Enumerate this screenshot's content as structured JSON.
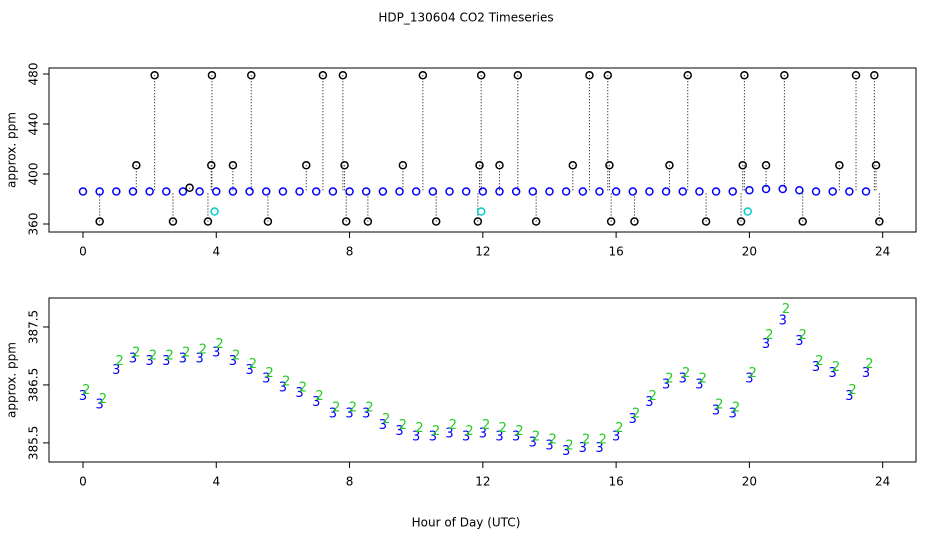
{
  "chart_data": [
    {
      "type": "scatter",
      "title": "HDP_130604  CO2 Timeseries",
      "y_label": "approx. ppm",
      "xlim": [
        -1.02,
        25
      ],
      "xticks": [
        0,
        4,
        8,
        12,
        16,
        20,
        24
      ],
      "ylim": [
        353.6,
        484.8
      ],
      "yticks": [
        360,
        400,
        440,
        480
      ],
      "droplines": true,
      "series": [
        {
          "color": "#0000ff",
          "x": [
            0,
            0.5,
            1,
            1.5,
            2,
            2.5,
            3,
            3.5,
            4,
            4.5,
            5,
            5.5,
            6,
            6.5,
            7,
            7.5,
            8,
            8.5,
            9,
            9.5,
            10,
            10.5,
            11,
            11.5,
            12,
            12.5,
            13,
            13.5,
            14,
            14.5,
            15,
            15.5,
            16,
            16.5,
            17,
            17.5,
            18,
            18.5,
            19,
            19.5,
            20,
            20.5,
            21,
            21.5,
            22,
            22.5,
            23,
            23.5
          ],
          "values": [
            386,
            386,
            386,
            386,
            386,
            386,
            386,
            386,
            386,
            386,
            386,
            386,
            386,
            386,
            386,
            386,
            386,
            386,
            386,
            386,
            386,
            386,
            386,
            386,
            386,
            386,
            386,
            386,
            386,
            386,
            386,
            386,
            386,
            386,
            386,
            386,
            386,
            386,
            386,
            386,
            387,
            388,
            388,
            387,
            386,
            386,
            386,
            386
          ]
        },
        {
          "color": "#000000",
          "drop": true,
          "x": [
            0.5,
            1.6,
            2.15,
            2.7,
            3.2,
            3.75,
            3.85,
            3.87,
            4.5,
            5.05,
            5.55,
            6.7,
            7.2,
            7.8,
            7.85,
            7.9,
            8.55,
            9.6,
            10.2,
            10.6,
            11.85,
            11.9,
            11.95,
            12.5,
            13.05,
            13.6,
            14.7,
            15.2,
            15.75,
            15.8,
            15.85,
            16.55,
            17.6,
            18.15,
            18.7,
            19.75,
            19.8,
            19.85,
            20.5,
            21.05,
            21.6,
            22.7,
            23.2,
            23.75,
            23.8,
            23.9
          ],
          "values": [
            362,
            407,
            479,
            362,
            389,
            362,
            407,
            479,
            407,
            479,
            362,
            407,
            479,
            479,
            407,
            362,
            362,
            407,
            479,
            362,
            362,
            407,
            479,
            407,
            479,
            362,
            407,
            479,
            479,
            407,
            362,
            362,
            407,
            479,
            362,
            362,
            407,
            479,
            407,
            479,
            362,
            407,
            479,
            479,
            407,
            362
          ]
        },
        {
          "color": "#00cccc",
          "x": [
            3.95,
            11.95,
            19.95
          ],
          "values": [
            370,
            370,
            370
          ]
        }
      ]
    },
    {
      "type": "glyph",
      "x_label": "Hour of Day (UTC)",
      "y_label": "approx. ppm",
      "xlim": [
        -1.02,
        25
      ],
      "xticks": [
        0,
        4,
        8,
        12,
        16,
        20,
        24
      ],
      "ylim": [
        385.17,
        388.0
      ],
      "yticks": [
        385.5,
        386.5,
        387.5
      ],
      "series": [
        {
          "marker": "3",
          "color": "#0000ff",
          "x": [
            0,
            0.5,
            1,
            1.5,
            2,
            2.5,
            3,
            3.5,
            4,
            4.5,
            5,
            5.5,
            6,
            6.5,
            7,
            7.5,
            8,
            8.5,
            9,
            9.5,
            10,
            10.5,
            11,
            11.5,
            12,
            12.5,
            13,
            13.5,
            14,
            14.5,
            15,
            15.5,
            16,
            16.5,
            17,
            17.5,
            18,
            18.5,
            19,
            19.5,
            20,
            20.5,
            21,
            21.5,
            22,
            22.5,
            23,
            23.5
          ],
          "values": [
            386.3,
            386.15,
            386.75,
            386.95,
            386.9,
            386.9,
            386.95,
            386.95,
            387.05,
            386.9,
            386.75,
            386.6,
            386.45,
            386.35,
            386.2,
            386.0,
            386.0,
            386.0,
            385.8,
            385.7,
            385.6,
            385.6,
            385.65,
            385.6,
            385.65,
            385.6,
            385.6,
            385.5,
            385.45,
            385.35,
            385.4,
            385.4,
            385.6,
            385.9,
            386.2,
            386.5,
            386.6,
            386.5,
            386.05,
            386.0,
            386.6,
            387.2,
            387.6,
            387.25,
            386.8,
            386.7,
            386.3,
            386.7
          ]
        },
        {
          "marker": "2",
          "color": "#22cc22",
          "x": [
            0.1,
            0.6,
            1.1,
            1.6,
            2.1,
            2.6,
            3.1,
            3.6,
            4.1,
            4.6,
            5.1,
            5.6,
            6.1,
            6.6,
            7.1,
            7.6,
            8.1,
            8.6,
            9.1,
            9.6,
            10.1,
            10.6,
            11.1,
            11.6,
            12.1,
            12.6,
            13.1,
            13.6,
            14.1,
            14.6,
            15.1,
            15.6,
            16.1,
            16.6,
            17.1,
            17.6,
            18.1,
            18.6,
            19.1,
            19.6,
            20.1,
            20.6,
            21.1,
            21.6,
            22.1,
            22.6,
            23.1,
            23.6
          ],
          "values": [
            386.4,
            386.25,
            386.9,
            387.05,
            387.0,
            387.0,
            387.05,
            387.1,
            387.2,
            387.0,
            386.85,
            386.7,
            386.55,
            386.45,
            386.3,
            386.1,
            386.1,
            386.1,
            385.9,
            385.8,
            385.75,
            385.7,
            385.8,
            385.7,
            385.8,
            385.75,
            385.7,
            385.6,
            385.55,
            385.45,
            385.55,
            385.55,
            385.75,
            386.0,
            386.3,
            386.6,
            386.7,
            386.6,
            386.15,
            386.1,
            386.7,
            387.35,
            387.8,
            387.35,
            386.9,
            386.8,
            386.4,
            386.85
          ]
        }
      ]
    }
  ]
}
